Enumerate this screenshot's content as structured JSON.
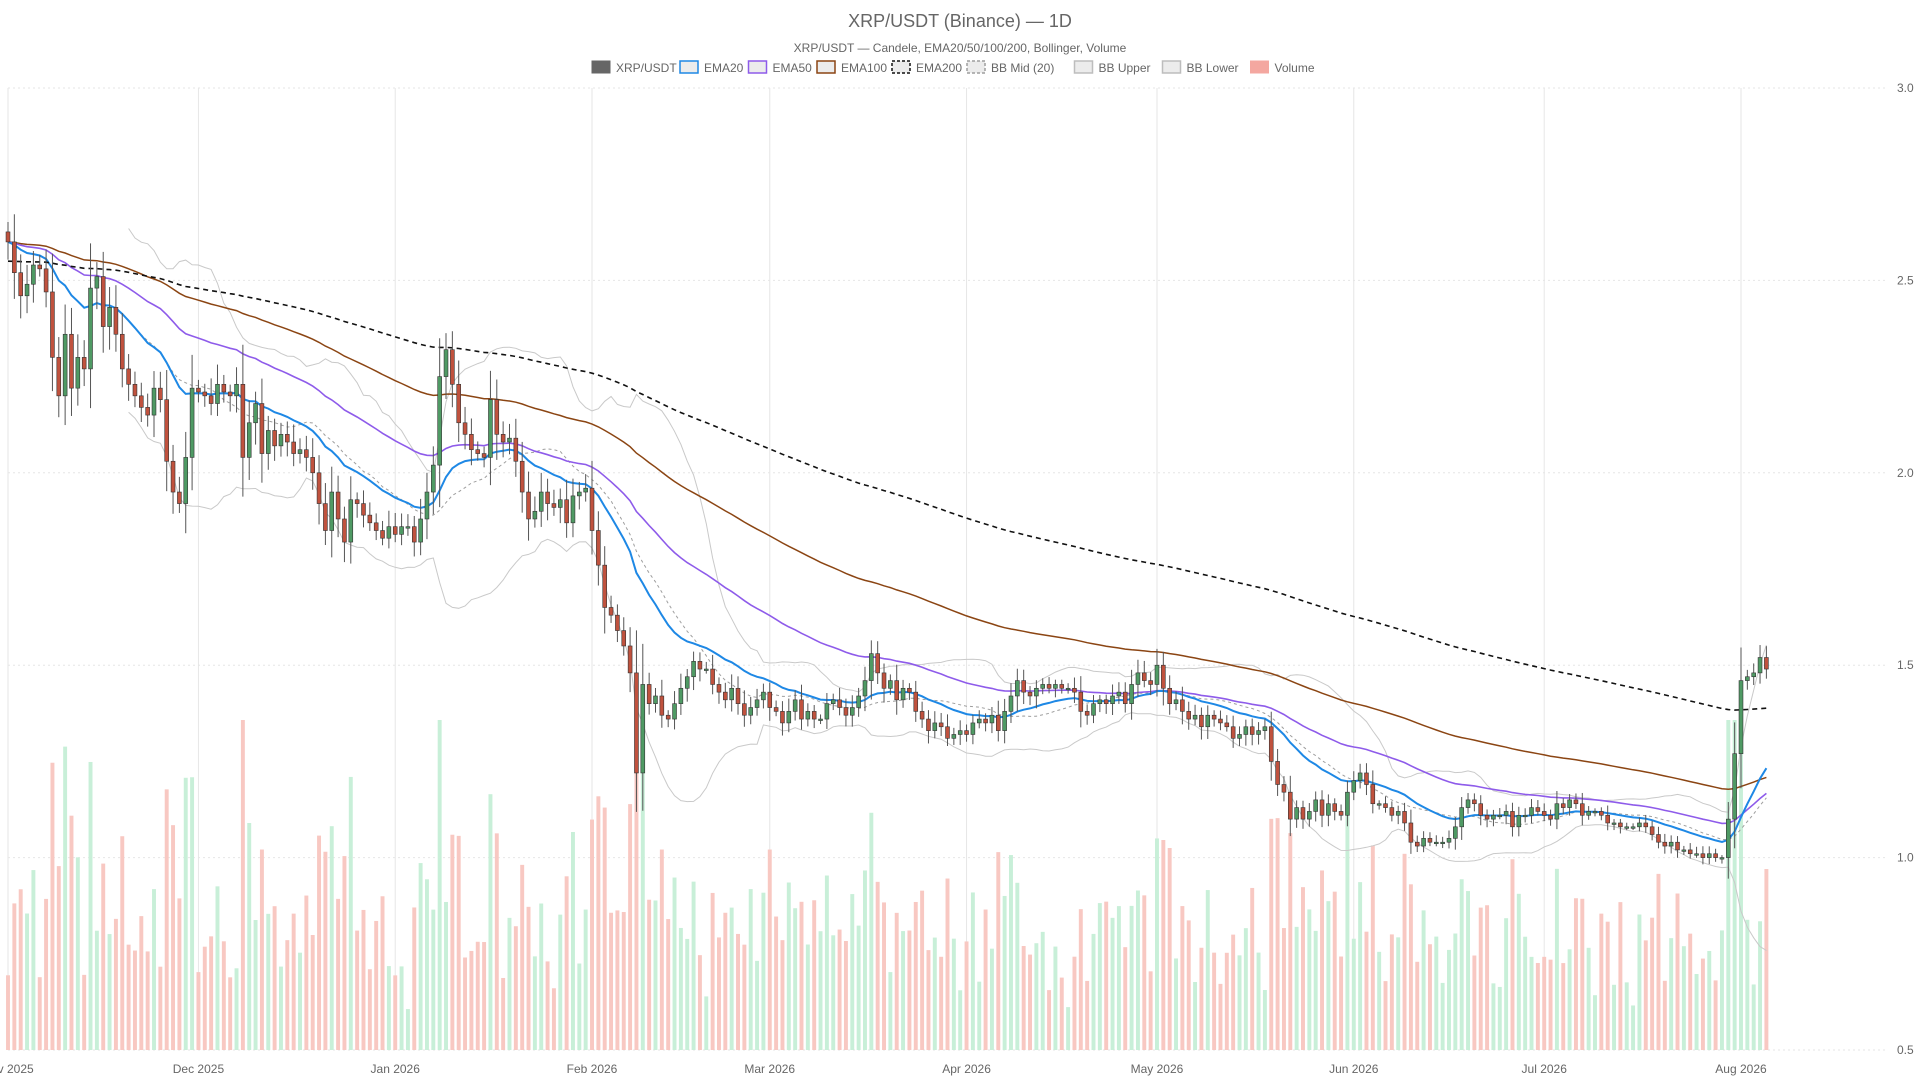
{
  "chart_data": {
    "type": "candlestick",
    "title": "XRP/USDT (Binance) — 1D",
    "subtitle": "XRP/USDT — Candele, EMA20/50/100/200, Bollinger, Volume",
    "legend": [
      {
        "name": "XRP/USDT",
        "color": "#666666",
        "style": "box-fill"
      },
      {
        "name": "EMA20",
        "color": "#1e88e5",
        "style": "box"
      },
      {
        "name": "EMA50",
        "color": "#8e5bea",
        "style": "box"
      },
      {
        "name": "EMA100",
        "color": "#8b4513",
        "style": "box"
      },
      {
        "name": "EMA200",
        "color": "#111111",
        "style": "box-dashed"
      },
      {
        "name": "BB Mid (20)",
        "color": "#9e9e9e",
        "style": "box-dashed"
      },
      {
        "name": "BB Upper",
        "color": "#bdbdbd",
        "style": "box"
      },
      {
        "name": "BB Lower",
        "color": "#bdbdbd",
        "style": "box"
      },
      {
        "name": "Volume",
        "color": "#f4a7a0",
        "style": "box-fill"
      }
    ],
    "legend_position": "top-center",
    "x_axis": {
      "type": "date",
      "range": [
        "2025-11-01",
        "2026-08-24"
      ],
      "tick_labels": [
        "Nov 2025",
        "Dec 2025",
        "Jan 2026",
        "Feb 2026",
        "Mar 2026",
        "Apr 2026",
        "May 2026",
        "Jun 2026",
        "Jul 2026",
        "Aug 2026"
      ],
      "tick_dates": [
        "2025-11-01",
        "2025-12-01",
        "2026-01-01",
        "2026-02-01",
        "2026-03-01",
        "2026-04-01",
        "2026-05-01",
        "2026-06-01",
        "2026-07-01",
        "2026-08-01"
      ]
    },
    "y_axis": {
      "position": "right",
      "range": [
        0.5,
        3.0
      ],
      "tick_labels": [
        "0.5",
        "1.0",
        "1.5",
        "2.0",
        "2.5",
        "3.0"
      ],
      "tick_values": [
        0.5,
        1.0,
        1.5,
        2.0,
        2.5,
        3.0
      ]
    },
    "grid": true,
    "volume_colors": {
      "up": "#c8efd8",
      "down": "#f8c8c2"
    },
    "candle_colors": {
      "up": "#4f9a64",
      "down": "#c0523e",
      "wick": "#555555"
    },
    "closes": [
      2.6,
      2.52,
      2.46,
      2.49,
      2.54,
      2.53,
      2.47,
      2.3,
      2.2,
      2.36,
      2.22,
      2.3,
      2.27,
      2.48,
      2.51,
      2.38,
      2.43,
      2.36,
      2.27,
      2.23,
      2.2,
      2.17,
      2.15,
      2.22,
      2.19,
      2.03,
      1.95,
      1.92,
      2.04,
      2.22,
      2.21,
      2.2,
      2.18,
      2.23,
      2.21,
      2.2,
      2.23,
      2.04,
      2.13,
      2.18,
      2.05,
      2.11,
      2.07,
      2.1,
      2.08,
      2.05,
      2.06,
      2.04,
      2.0,
      1.92,
      1.85,
      1.95,
      1.88,
      1.82,
      1.93,
      1.92,
      1.89,
      1.87,
      1.85,
      1.83,
      1.86,
      1.84,
      1.86,
      1.86,
      1.82,
      1.88,
      1.95,
      2.02,
      2.25,
      2.32,
      2.23,
      2.13,
      2.1,
      2.06,
      2.05,
      2.04,
      2.19,
      2.1,
      2.08,
      2.09,
      2.03,
      1.95,
      1.88,
      1.9,
      1.95,
      1.92,
      1.91,
      1.93,
      1.87,
      1.94,
      1.95,
      1.96,
      1.85,
      1.76,
      1.65,
      1.63,
      1.59,
      1.55,
      1.48,
      1.22,
      1.45,
      1.4,
      1.42,
      1.37,
      1.36,
      1.4,
      1.44,
      1.47,
      1.51,
      1.49,
      1.49,
      1.45,
      1.43,
      1.41,
      1.44,
      1.4,
      1.37,
      1.39,
      1.41,
      1.43,
      1.39,
      1.38,
      1.35,
      1.38,
      1.41,
      1.36,
      1.38,
      1.36,
      1.36,
      1.4,
      1.41,
      1.39,
      1.37,
      1.39,
      1.42,
      1.46,
      1.53,
      1.48,
      1.44,
      1.46,
      1.41,
      1.44,
      1.43,
      1.38,
      1.36,
      1.33,
      1.35,
      1.34,
      1.31,
      1.32,
      1.33,
      1.32,
      1.35,
      1.36,
      1.35,
      1.37,
      1.33,
      1.38,
      1.42,
      1.46,
      1.43,
      1.42,
      1.44,
      1.45,
      1.44,
      1.45,
      1.44,
      1.44,
      1.43,
      1.38,
      1.37,
      1.4,
      1.41,
      1.4,
      1.42,
      1.43,
      1.4,
      1.45,
      1.48,
      1.46,
      1.45,
      1.5,
      1.44,
      1.4,
      1.41,
      1.38,
      1.36,
      1.37,
      1.34,
      1.37,
      1.36,
      1.35,
      1.34,
      1.31,
      1.32,
      1.34,
      1.32,
      1.33,
      1.34,
      1.25,
      1.19,
      1.17,
      1.1,
      1.13,
      1.1,
      1.12,
      1.15,
      1.11,
      1.14,
      1.12,
      1.11,
      1.17,
      1.2,
      1.22,
      1.19,
      1.14,
      1.14,
      1.13,
      1.11,
      1.12,
      1.09,
      1.04,
      1.03,
      1.05,
      1.04,
      1.04,
      1.04,
      1.05,
      1.08,
      1.13,
      1.15,
      1.14,
      1.11,
      1.1,
      1.11,
      1.11,
      1.12,
      1.08,
      1.11,
      1.11,
      1.13,
      1.12,
      1.11,
      1.1,
      1.14,
      1.13,
      1.15,
      1.14,
      1.11,
      1.12,
      1.12,
      1.11,
      1.09,
      1.09,
      1.08,
      1.08,
      1.08,
      1.09,
      1.08,
      1.06,
      1.04,
      1.03,
      1.04,
      1.02,
      1.02,
      1.01,
      1.01,
      1.0,
      1.01,
      1.0,
      1.0,
      1.1,
      1.27,
      1.46,
      1.47,
      1.48,
      1.52,
      1.49
    ]
  }
}
